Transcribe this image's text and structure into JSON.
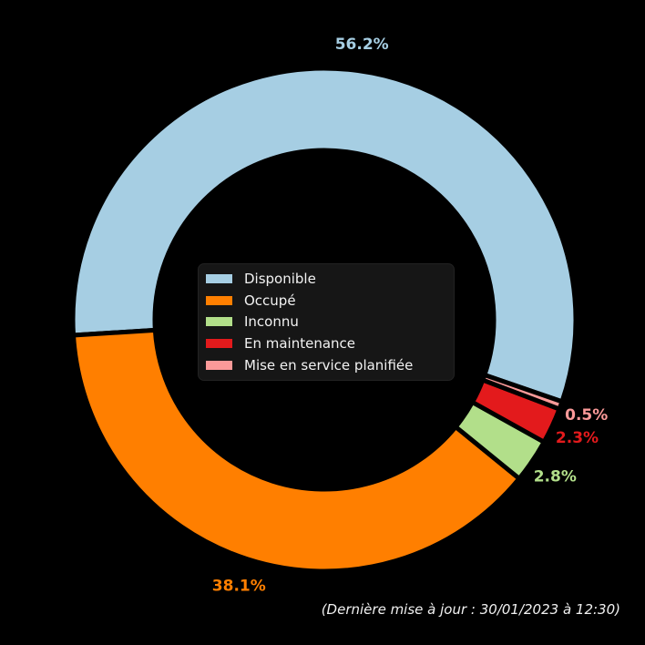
{
  "chart_data": {
    "type": "pie",
    "variant": "donut",
    "title": "",
    "unit": "%",
    "segments": [
      {
        "label": "Disponible",
        "value": 56.2,
        "pct_label": "56.2%",
        "color": "#a6cee3"
      },
      {
        "label": "Occupé",
        "value": 38.1,
        "pct_label": "38.1%",
        "color": "#ff7f00"
      },
      {
        "label": "Inconnu",
        "value": 2.8,
        "pct_label": "2.8%",
        "color": "#b2df8a"
      },
      {
        "label": "En maintenance",
        "value": 2.3,
        "pct_label": "2.3%",
        "color": "#e31a1c"
      },
      {
        "label": "Mise en service planifiée",
        "value": 0.5,
        "pct_label": "0.5%",
        "color": "#fb9a99"
      }
    ],
    "start_angle_deg": -19,
    "direction": "counterclockwise",
    "hole_ratio": 0.674,
    "legend_position": "center",
    "background_color": "#000000"
  },
  "footer": {
    "updated_note": "(Dernière mise à jour : 30/01/2023 à 12:30)"
  }
}
